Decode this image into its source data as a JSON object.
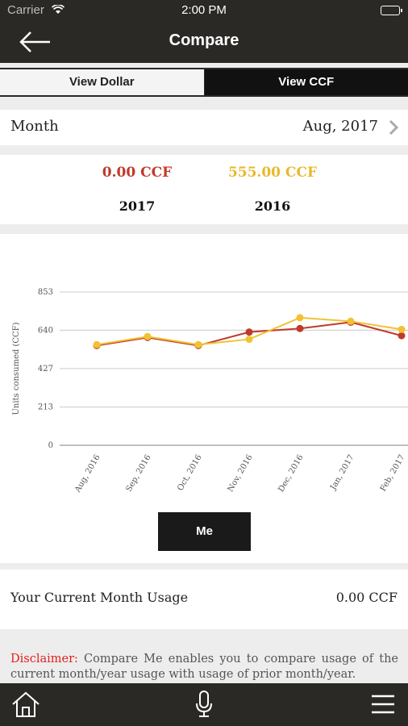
{
  "status_bar": {
    "carrier": "Carrier",
    "time": "2:00 PM"
  },
  "nav": {
    "title": "Compare"
  },
  "toggle": {
    "dollar_label": "View Dollar",
    "ccf_label": "View CCF",
    "selected": "View CCF"
  },
  "month_row": {
    "label": "Month",
    "value": "Aug, 2017"
  },
  "totals": {
    "current": {
      "value": "0.00 CCF",
      "year": "2017"
    },
    "previous": {
      "value": "555.00 CCF",
      "year": "2016"
    }
  },
  "chart_data": {
    "type": "line",
    "ylabel": "Units consumed (CCF)",
    "yticks": [
      0,
      213,
      427,
      640,
      853
    ],
    "ylim": [
      0,
      853
    ],
    "categories": [
      "Aug, 2016",
      "Sep, 2016",
      "Oct, 2016",
      "Nov, 2016",
      "Dec, 2016",
      "Jan, 2017",
      "Feb, 2017"
    ],
    "series": [
      {
        "values": [
          555,
          600,
          555,
          630,
          650,
          685,
          610
        ],
        "color": "#c0392b"
      },
      {
        "values": [
          560,
          605,
          560,
          590,
          710,
          690,
          645
        ],
        "color": "#f1c232"
      }
    ],
    "grid": true
  },
  "me_button": {
    "label": "Me"
  },
  "usage": {
    "label": "Your Current Month Usage",
    "value": "0.00 CCF"
  },
  "disclaimer": {
    "label": "Disclaimer:",
    "text": " Compare Me enables you to compare usage of the current month/year usage with usage of prior month/year."
  },
  "colors": {
    "dark": "#2b2926",
    "current": "#c03a2b",
    "previous": "#e9b82e",
    "disclaimer_label": "#e3201c"
  }
}
